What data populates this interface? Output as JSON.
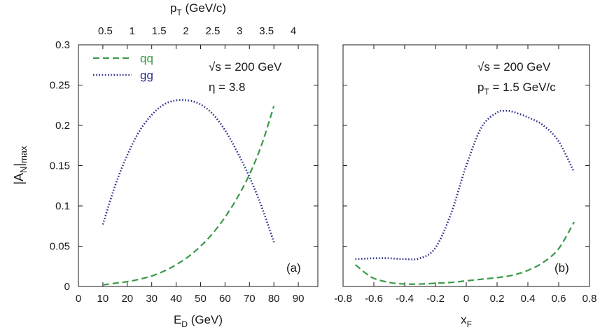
{
  "chart_data": [
    {
      "panel": "(a)",
      "type": "line",
      "xlabel_main": "E",
      "xlabel_sub": "D",
      "xlabel_unit": " (GeV)",
      "ylabel_main": "|A",
      "ylabel_sub1": "N",
      "ylabel_mid": "|",
      "ylabel_sub2": "max",
      "top_axis_label_main": "p",
      "top_axis_label_sub": "T",
      "top_axis_label_unit": " (GeV/c)",
      "xlim": [
        0,
        98
      ],
      "ylim": [
        0,
        0.3
      ],
      "x_ticks": [
        "0",
        "10",
        "20",
        "30",
        "40",
        "50",
        "60",
        "70",
        "80",
        "90"
      ],
      "y_ticks": [
        "0",
        "0.05",
        "0.1",
        "0.15",
        "0.2",
        "0.25",
        "0.3"
      ],
      "top_ticks": [
        {
          "label": "0.5",
          "at_x": 11
        },
        {
          "label": "1",
          "at_x": 22
        },
        {
          "label": "1.5",
          "at_x": 33
        },
        {
          "label": "2",
          "at_x": 44
        },
        {
          "label": "2.5",
          "at_x": 55
        },
        {
          "label": "3",
          "at_x": 66
        },
        {
          "label": "3.5",
          "at_x": 77
        },
        {
          "label": "4",
          "at_x": 88
        }
      ],
      "annotations": {
        "sqrt_s": "√s = 200 GeV",
        "eta": "η = 3.8"
      },
      "legend": [
        {
          "name": "qq",
          "color": "#3a9a48",
          "style": "dashed"
        },
        {
          "name": "gg",
          "color": "#2b2f8c",
          "style": "dotted"
        }
      ],
      "series": [
        {
          "name": "qq",
          "x": [
            10,
            15,
            20,
            25,
            30,
            35,
            40,
            45,
            50,
            55,
            60,
            65,
            70,
            75,
            80
          ],
          "y": [
            0.002,
            0.004,
            0.006,
            0.009,
            0.013,
            0.019,
            0.027,
            0.037,
            0.05,
            0.066,
            0.086,
            0.11,
            0.139,
            0.176,
            0.224
          ]
        },
        {
          "name": "gg",
          "x": [
            10,
            15,
            20,
            25,
            30,
            35,
            40,
            45,
            50,
            55,
            60,
            65,
            70,
            75,
            80
          ],
          "y": [
            0.077,
            0.125,
            0.163,
            0.193,
            0.213,
            0.226,
            0.231,
            0.231,
            0.226,
            0.214,
            0.194,
            0.167,
            0.136,
            0.099,
            0.055
          ]
        }
      ]
    },
    {
      "panel": "(b)",
      "type": "line",
      "xlabel_main": "x",
      "xlabel_sub": "F",
      "xlim": [
        -0.8,
        0.8
      ],
      "ylim": [
        0,
        0.3
      ],
      "x_ticks": [
        "-0.8",
        "-0.6",
        "-0.4",
        "-0.2",
        "0",
        "0.2",
        "0.4",
        "0.6",
        "0.8"
      ],
      "annotations": {
        "sqrt_s": "√s = 200 GeV",
        "pt_main": "p",
        "pt_sub": "T",
        "pt_rest": " = 1.5 GeV/c"
      },
      "series": [
        {
          "name": "qq",
          "x": [
            -0.72,
            -0.65,
            -0.6,
            -0.5,
            -0.4,
            -0.3,
            -0.2,
            -0.1,
            0.0,
            0.1,
            0.2,
            0.3,
            0.4,
            0.5,
            0.6,
            0.7
          ],
          "y": [
            0.027,
            0.016,
            0.01,
            0.005,
            0.003,
            0.003,
            0.004,
            0.005,
            0.007,
            0.009,
            0.011,
            0.014,
            0.02,
            0.03,
            0.047,
            0.08
          ]
        },
        {
          "name": "gg",
          "x": [
            -0.72,
            -0.6,
            -0.5,
            -0.4,
            -0.3,
            -0.2,
            -0.1,
            0.0,
            0.1,
            0.2,
            0.25,
            0.3,
            0.4,
            0.5,
            0.6,
            0.7
          ],
          "y": [
            0.034,
            0.035,
            0.035,
            0.034,
            0.035,
            0.048,
            0.09,
            0.15,
            0.198,
            0.216,
            0.218,
            0.217,
            0.21,
            0.2,
            0.18,
            0.142
          ]
        }
      ]
    }
  ]
}
